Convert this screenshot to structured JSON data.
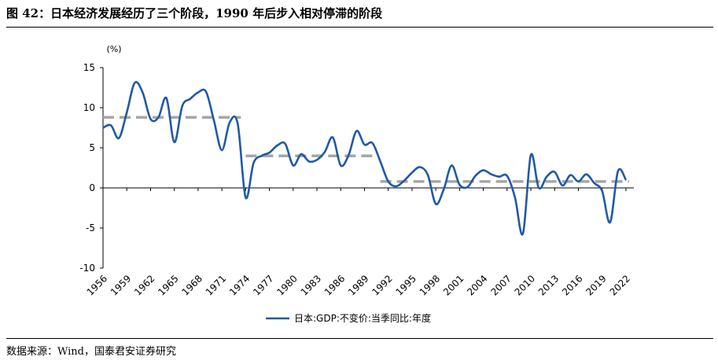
{
  "figure": {
    "title": "图 42：日本经济发展经历了三个阶段，1990 年后步入相对停滞的阶段",
    "source": "数据来源：Wind，国泰君安证券研究"
  },
  "chart_data": {
    "type": "line",
    "unit_label": "(%)",
    "xlabel": "",
    "ylabel": "",
    "ylim": [
      -10,
      15
    ],
    "yticks": [
      15,
      10,
      5,
      0,
      -5,
      -10
    ],
    "xlim": [
      1956,
      2023
    ],
    "xticks": [
      "1956",
      "1959",
      "1962",
      "1965",
      "1968",
      "1971",
      "1974",
      "1977",
      "1980",
      "1983",
      "1986",
      "1989",
      "1992",
      "1995",
      "1998",
      "2001",
      "2004",
      "2007",
      "2010",
      "2013",
      "2016",
      "2019",
      "2022"
    ],
    "grid": false,
    "legend_position": "bottom",
    "series": [
      {
        "name": "日本:GDP:不变价:当季同比:年度",
        "color": "#1f5aa6",
        "x": [
          1956,
          1957,
          1958,
          1959,
          1960,
          1961,
          1962,
          1963,
          1964,
          1965,
          1966,
          1967,
          1968,
          1969,
          1970,
          1971,
          1972,
          1973,
          1974,
          1975,
          1976,
          1977,
          1978,
          1979,
          1980,
          1981,
          1982,
          1983,
          1984,
          1985,
          1986,
          1987,
          1988,
          1989,
          1990,
          1991,
          1992,
          1993,
          1994,
          1995,
          1996,
          1997,
          1998,
          1999,
          2000,
          2001,
          2002,
          2003,
          2004,
          2005,
          2006,
          2007,
          2008,
          2009,
          2010,
          2011,
          2012,
          2013,
          2014,
          2015,
          2016,
          2017,
          2018,
          2019,
          2020,
          2021,
          2022
        ],
        "values": [
          7.5,
          7.8,
          6.2,
          9.4,
          13.1,
          11.9,
          8.6,
          8.8,
          11.2,
          5.7,
          10.2,
          11.1,
          11.9,
          12.0,
          8.4,
          4.7,
          8.2,
          8.0,
          -1.2,
          3.1,
          4.0,
          4.4,
          5.3,
          5.5,
          2.8,
          4.2,
          3.3,
          3.5,
          4.5,
          6.3,
          2.8,
          4.1,
          7.1,
          5.4,
          5.6,
          3.3,
          0.8,
          0.2,
          0.9,
          1.9,
          2.6,
          1.6,
          -2.0,
          -0.2,
          2.8,
          0.4,
          0.1,
          1.5,
          2.2,
          1.7,
          1.4,
          1.5,
          -1.2,
          -5.7,
          4.1,
          0.0,
          1.4,
          2.0,
          0.3,
          1.6,
          0.8,
          1.7,
          0.6,
          -0.4,
          -4.3,
          2.1,
          1.0
        ]
      }
    ],
    "reference_lines": [
      {
        "x_start": 1956,
        "x_end": 1973,
        "value": 8.8,
        "color": "#a6a6a6"
      },
      {
        "x_start": 1974,
        "x_end": 1990,
        "value": 4.0,
        "color": "#a6a6a6"
      },
      {
        "x_start": 1991,
        "x_end": 2022,
        "value": 0.8,
        "color": "#a6a6a6"
      }
    ]
  }
}
